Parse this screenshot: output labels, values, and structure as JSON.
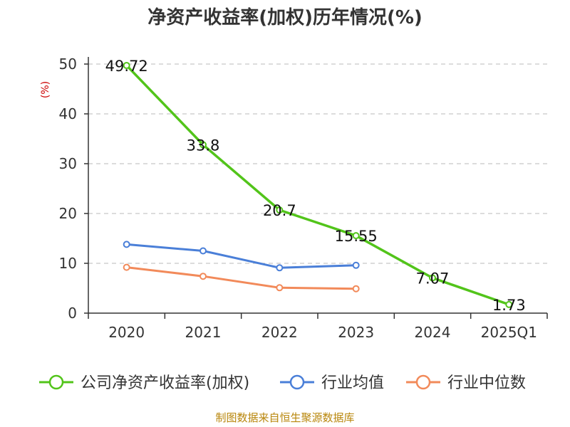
{
  "chart_data": {
    "type": "line",
    "title": "净资产收益率(加权)历年情况(%)",
    "ylabel": "(%)",
    "xlabel": "",
    "categories": [
      "2020",
      "2021",
      "2022",
      "2023",
      "2024",
      "2025Q1"
    ],
    "ylim": [
      0,
      50
    ],
    "yticks": [
      0,
      10,
      20,
      30,
      40,
      50
    ],
    "grid": true,
    "legend_position": "bottom",
    "series": [
      {
        "name": "公司净资产收益率(加权)",
        "color": "#52c41a",
        "values": [
          49.72,
          33.8,
          20.7,
          15.55,
          7.07,
          1.73
        ],
        "data_labels": [
          "49.72",
          "33.8",
          "20.7",
          "15.55",
          "7.07",
          "1.73"
        ]
      },
      {
        "name": "行业均值",
        "color": "#4a7fd8",
        "values": [
          13.8,
          12.5,
          9.1,
          9.6,
          null,
          null
        ]
      },
      {
        "name": "行业中位数",
        "color": "#f28a5a",
        "values": [
          9.2,
          7.4,
          5.1,
          4.9,
          null,
          null
        ]
      }
    ]
  },
  "source": "制图数据来自恒生聚源数据库"
}
